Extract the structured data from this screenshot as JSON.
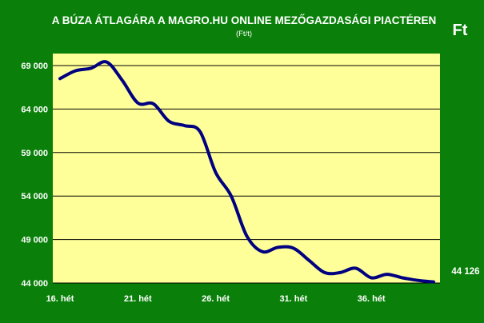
{
  "chart_data": {
    "type": "line",
    "title": "A BÚZA ÁTLAGÁRA A MAGRO.HU ONLINE MEZŐGAZDASÁGI PIACTÉREN",
    "subtitle": "(Ft/t)",
    "unit_label": "Ft",
    "x_tick_labels": [
      "16. hét",
      "21. hét",
      "26. hét",
      "31. hét",
      "36. hét"
    ],
    "x_tick_positions": [
      16,
      21,
      26,
      31,
      36
    ],
    "xlim": [
      16,
      40
    ],
    "y_tick_labels": [
      "69 000",
      "64 000",
      "59 000",
      "54 000",
      "49 000",
      "44 000"
    ],
    "y_tick_values": [
      69000,
      64000,
      59000,
      54000,
      49000,
      44000
    ],
    "ylim": [
      44000,
      69000
    ],
    "grid": true,
    "series": [
      {
        "x": [
          16,
          17,
          18,
          19,
          20,
          21,
          22,
          23,
          24,
          25,
          26,
          27,
          28,
          29,
          30,
          31,
          32,
          33,
          34,
          35,
          36,
          37,
          38,
          39,
          40
        ],
        "values": [
          67500,
          68400,
          68700,
          69400,
          67300,
          64700,
          64600,
          62600,
          62100,
          61400,
          56700,
          54000,
          49400,
          47600,
          48100,
          48000,
          46600,
          45200,
          45200,
          45700,
          44600,
          45000,
          44600,
          44300,
          44126
        ],
        "color": "#000080"
      }
    ],
    "last_value_label": "44 126"
  }
}
